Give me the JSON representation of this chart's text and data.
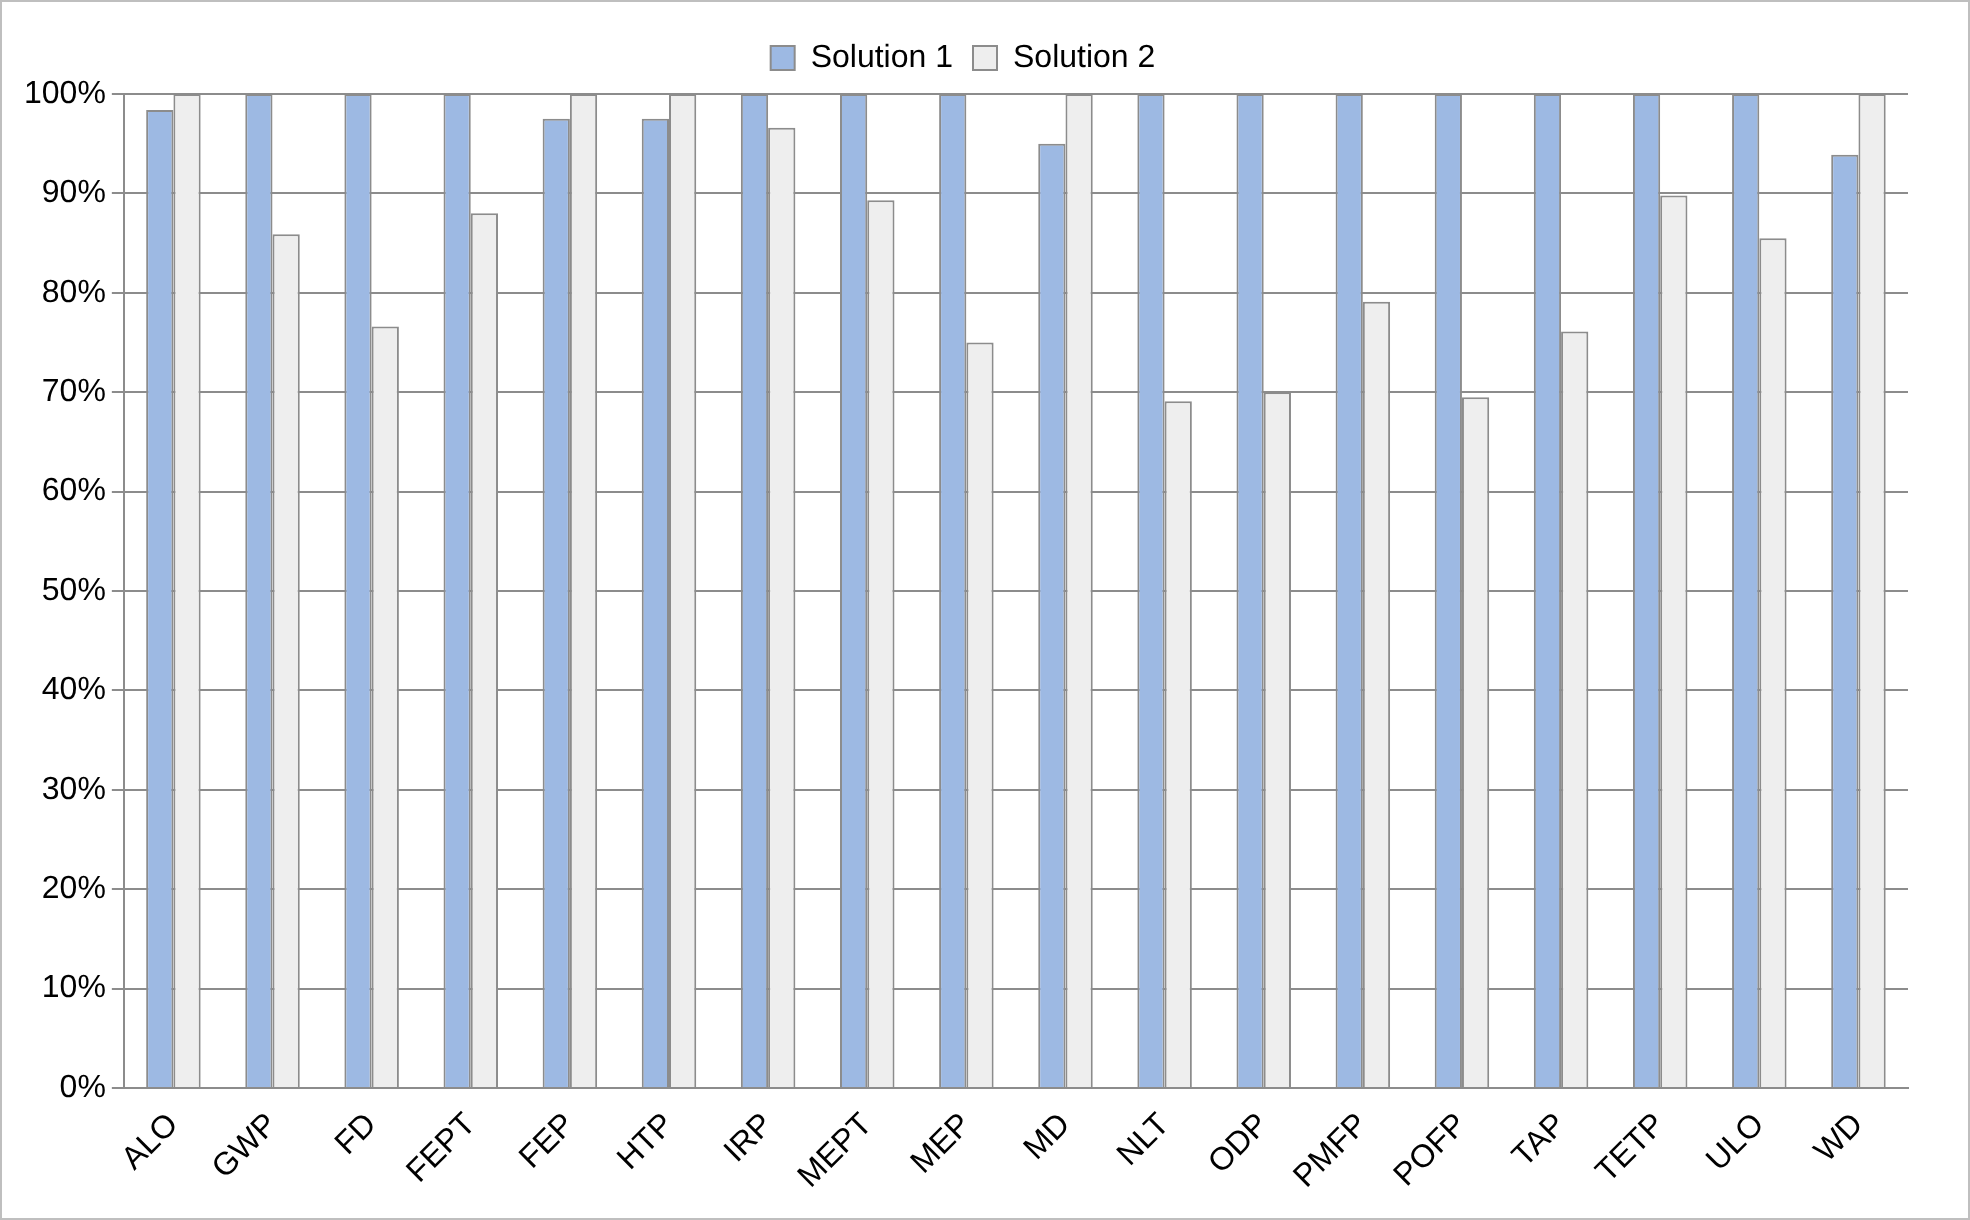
{
  "chart_data": {
    "type": "bar",
    "categories": [
      "ALO",
      "GWP",
      "FD",
      "FEPT",
      "FEP",
      "HTP",
      "IRP",
      "MEPT",
      "MEP",
      "MD",
      "NLT",
      "ODP",
      "PMFP",
      "POFP",
      "TAP",
      "TETP",
      "ULO",
      "WD"
    ],
    "series": [
      {
        "name": "Solution 1",
        "color": "#9db9e3",
        "values": [
          98.4,
          100,
          100,
          100,
          97.5,
          97.5,
          100,
          100,
          100,
          95,
          100,
          100,
          100,
          100,
          100,
          100,
          100,
          93.9
        ]
      },
      {
        "name": "Solution 2",
        "color": "#eeeeee",
        "values": [
          100,
          85.9,
          76.6,
          88,
          100,
          100,
          96.6,
          89.3,
          75,
          100,
          69.1,
          70,
          79.1,
          69.5,
          76.1,
          89.8,
          85.5,
          100
        ]
      }
    ],
    "ylim": [
      0,
      100
    ],
    "yticks": [
      {
        "value": 0,
        "label": "0%"
      },
      {
        "value": 10,
        "label": "10%"
      },
      {
        "value": 20,
        "label": "20%"
      },
      {
        "value": 30,
        "label": "30%"
      },
      {
        "value": 40,
        "label": "40%"
      },
      {
        "value": 50,
        "label": "50%"
      },
      {
        "value": 60,
        "label": "60%"
      },
      {
        "value": 70,
        "label": "70%"
      },
      {
        "value": 80,
        "label": "80%"
      },
      {
        "value": 90,
        "label": "90%"
      },
      {
        "value": 100,
        "label": "100%"
      }
    ],
    "grid": "y",
    "legend": "top"
  }
}
